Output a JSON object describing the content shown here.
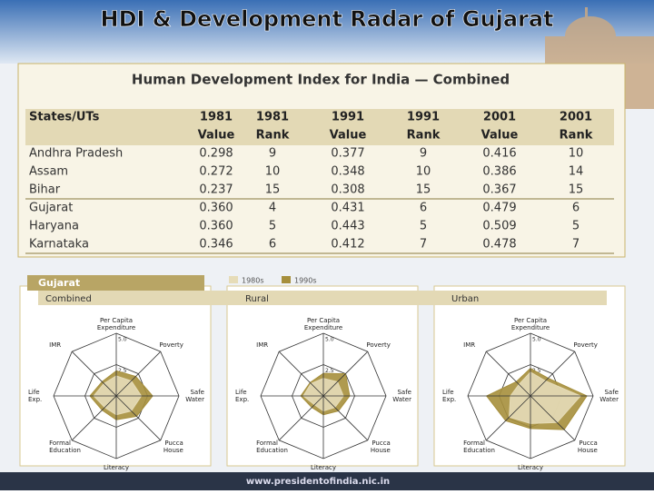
{
  "slide": {
    "title": "HDI & Development Radar of Gujarat",
    "footer": "www.presidentofindia.nic.in",
    "section": "Gujarat"
  },
  "table": {
    "title": "Human Development Index for India — Combined",
    "header_top": [
      "States/UTs",
      "1981",
      "1981",
      "1991",
      "1991",
      "2001",
      "2001"
    ],
    "header_bottom": [
      "Value",
      "Rank",
      "Value",
      "Rank",
      "Value",
      "Rank"
    ],
    "rows": [
      [
        "Andhra Pradesh",
        "0.298",
        "9",
        "0.377",
        "9",
        "0.416",
        "10"
      ],
      [
        "Assam",
        "0.272",
        "10",
        "0.348",
        "10",
        "0.386",
        "14"
      ],
      [
        "Bihar",
        "0.237",
        "15",
        "0.308",
        "15",
        "0.367",
        "15"
      ],
      [
        "Gujarat",
        "0.360",
        "4",
        "0.431",
        "6",
        "0.479",
        "6"
      ],
      [
        "Haryana",
        "0.360",
        "5",
        "0.443",
        "5",
        "0.509",
        "5"
      ],
      [
        "Karnataka",
        "0.346",
        "6",
        "0.412",
        "7",
        "0.478",
        "7"
      ]
    ]
  },
  "chart_data": [
    {
      "type": "radar",
      "title": "Combined",
      "categories": [
        "Per Capita Expenditure",
        "Poverty",
        "Safe Water",
        "Pucca House",
        "Literacy",
        "Formal Education",
        "Life Exp.",
        "IMR"
      ],
      "rlim": [
        0,
        5
      ],
      "rticks": [
        0,
        2.5,
        {
          "value": 5,
          "label": "5.0"
        }
      ],
      "series": [
        {
          "name": "1980s",
          "color": "#e6dcb8",
          "values": [
            1.6,
            1.7,
            2.0,
            1.7,
            1.5,
            1.3,
            1.8,
            1.4
          ]
        },
        {
          "name": "1990s",
          "color": "#a68f3c",
          "values": [
            2.0,
            2.2,
            2.9,
            2.3,
            1.9,
            1.6,
            2.1,
            1.6
          ]
        }
      ]
    },
    {
      "type": "radar",
      "title": "Rural",
      "categories": [
        "Per Capita Expenditure",
        "Poverty",
        "Safe Water",
        "Pucca House",
        "Literacy",
        "Formal Education",
        "Life Exp.",
        "IMR"
      ],
      "rlim": [
        0,
        5
      ],
      "rticks": [
        0,
        2.5,
        {
          "value": 5,
          "label": "5.0"
        }
      ],
      "series": [
        {
          "name": "1980s",
          "color": "#e6dcb8",
          "values": [
            1.4,
            1.6,
            1.6,
            1.3,
            1.2,
            1.0,
            1.6,
            1.4
          ]
        },
        {
          "name": "1990s",
          "color": "#a68f3c",
          "values": [
            1.8,
            2.5,
            2.1,
            1.7,
            1.5,
            1.3,
            1.8,
            1.5
          ]
        }
      ]
    },
    {
      "type": "radar",
      "title": "Urban",
      "categories": [
        "Per Capita Expenditure",
        "Poverty",
        "Safe Water",
        "Pucca House",
        "Literacy",
        "Formal Education",
        "Life Exp.",
        "IMR"
      ],
      "rlim": [
        0,
        5
      ],
      "rticks": [
        0,
        2.5,
        {
          "value": 5,
          "label": "5.0"
        }
      ],
      "series": [
        {
          "name": "1980s",
          "color": "#e6dcb8",
          "values": [
            1.9,
            1.7,
            4.0,
            3.0,
            2.2,
            2.4,
            1.6,
            1.3
          ]
        },
        {
          "name": "1990s",
          "color": "#a68f3c",
          "values": [
            2.2,
            2.0,
            4.5,
            3.8,
            2.6,
            2.8,
            3.5,
            1.6
          ]
        }
      ]
    }
  ]
}
